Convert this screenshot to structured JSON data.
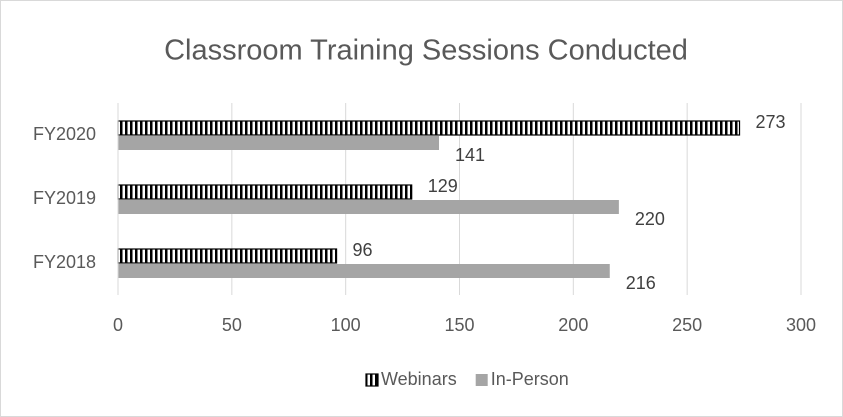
{
  "chart_data": {
    "type": "hbar",
    "title": "Classroom Training Sessions Conducted",
    "categories": [
      "FY2018",
      "FY2019",
      "FY2020"
    ],
    "series": [
      {
        "name": "Webinars",
        "color": "#000000",
        "pattern": "vertical-stripes",
        "values": [
          96,
          129,
          273
        ]
      },
      {
        "name": "In-Person",
        "color": "#a5a5a5",
        "values": [
          216,
          220,
          141
        ]
      }
    ],
    "xlim": [
      0,
      300
    ],
    "xticks": [
      0,
      50,
      100,
      150,
      200,
      250,
      300
    ],
    "grid": true,
    "legend": "bottom"
  }
}
